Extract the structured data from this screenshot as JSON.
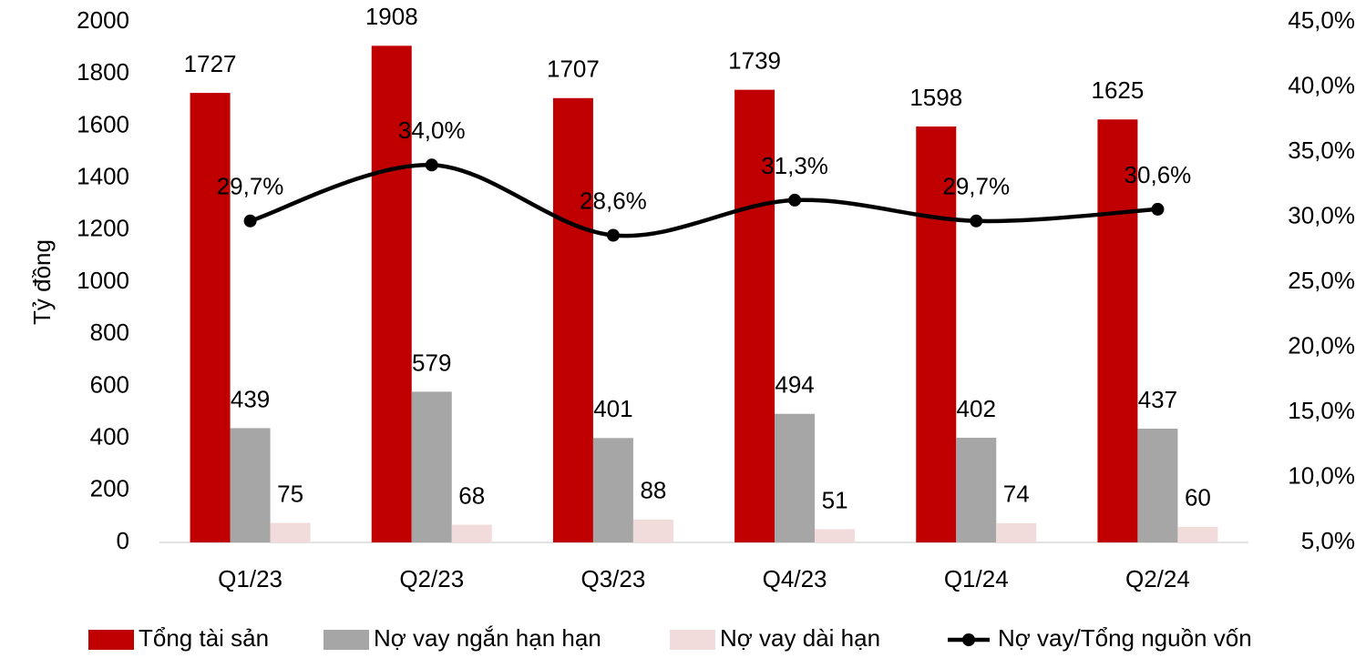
{
  "chart_data": {
    "type": "bar_line",
    "y_label": "Tỷ đồng",
    "categories": [
      "Q1/23",
      "Q2/23",
      "Q3/23",
      "Q4/23",
      "Q1/24",
      "Q2/24"
    ],
    "series": [
      {
        "name": "Tổng tài sản",
        "color": "#c00000",
        "type": "bar",
        "values": [
          1727,
          1908,
          1707,
          1739,
          1598,
          1625
        ]
      },
      {
        "name": "Nợ vay ngắn hạn hạn",
        "color": "#a6a6a6",
        "type": "bar",
        "values": [
          439,
          579,
          401,
          494,
          402,
          437
        ]
      },
      {
        "name": "Nợ vay dài hạn",
        "color": "#f2dcdb",
        "type": "bar",
        "values": [
          75,
          68,
          88,
          51,
          74,
          60
        ]
      },
      {
        "name": "Nợ vay/Tổng nguồn vốn",
        "color": "#000000",
        "type": "line",
        "axis": "y2",
        "smooth": true,
        "values": [
          29.7,
          34.0,
          28.6,
          31.3,
          29.7,
          30.6
        ],
        "value_labels": [
          "29,7%",
          "34,0%",
          "28,6%",
          "31,3%",
          "29,7%",
          "30,6%"
        ]
      }
    ],
    "ylim": [
      0,
      2000
    ],
    "yticks": [
      0,
      200,
      400,
      600,
      800,
      1000,
      1200,
      1400,
      1600,
      1800,
      2000
    ],
    "y2lim": [
      5,
      45
    ],
    "y2ticks": [
      {
        "value": 5,
        "label": "5,0%"
      },
      {
        "value": 10,
        "label": "10,0%"
      },
      {
        "value": 15,
        "label": "15,0%"
      },
      {
        "value": 20,
        "label": "20,0%"
      },
      {
        "value": 25,
        "label": "25,0%"
      },
      {
        "value": 30,
        "label": "30,0%"
      },
      {
        "value": 35,
        "label": "35,0%"
      },
      {
        "value": 40,
        "label": "40,0%"
      },
      {
        "value": 45,
        "label": "45,0%"
      }
    ],
    "legend": "bottom",
    "grid": false
  }
}
